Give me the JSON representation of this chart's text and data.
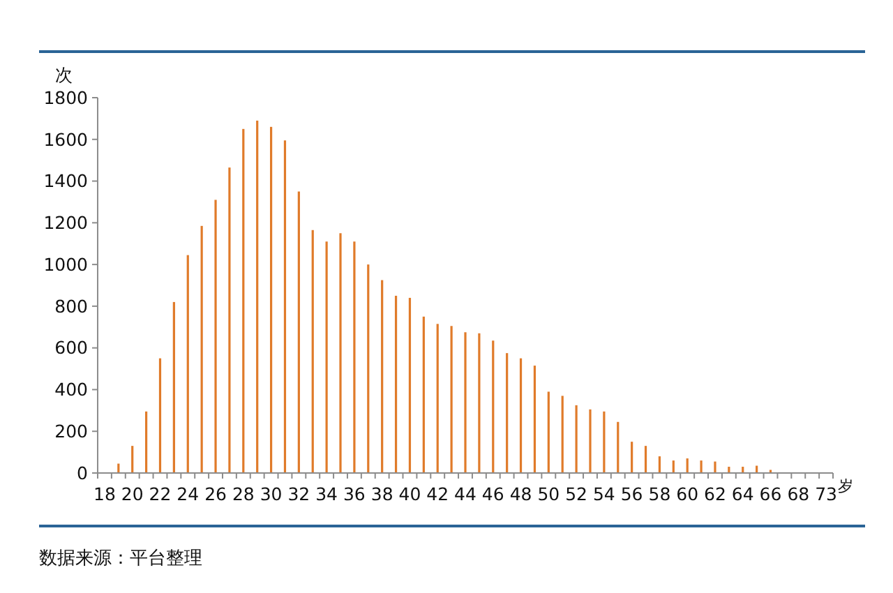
{
  "chart_data": {
    "type": "bar",
    "ylabel": "次",
    "xlabel": "岁",
    "categories": [
      "18",
      null,
      "20",
      null,
      "22",
      null,
      "24",
      null,
      "26",
      null,
      "28",
      null,
      "30",
      null,
      "32",
      null,
      "34",
      null,
      "36",
      null,
      "38",
      null,
      "40",
      null,
      "42",
      null,
      "44",
      null,
      "46",
      null,
      "48",
      null,
      "50",
      null,
      "52",
      null,
      "54",
      null,
      "56",
      null,
      "58",
      null,
      "60",
      null,
      "62",
      null,
      "64",
      null,
      "66",
      null,
      "68",
      null,
      "73"
    ],
    "values": [
      0,
      45,
      130,
      295,
      550,
      820,
      1045,
      1185,
      1310,
      1465,
      1650,
      1690,
      1660,
      1595,
      1350,
      1165,
      1110,
      1150,
      1110,
      1000,
      925,
      850,
      840,
      750,
      715,
      705,
      675,
      670,
      635,
      575,
      550,
      515,
      390,
      370,
      325,
      305,
      295,
      245,
      150,
      130,
      80,
      60,
      70,
      60,
      55,
      30,
      30,
      35,
      15,
      0,
      0,
      0,
      0
    ],
    "color": "#e07b2a",
    "ylim": [
      0,
      1800
    ],
    "yticks": [
      0,
      200,
      400,
      600,
      800,
      1000,
      1200,
      1400,
      1600,
      1800
    ],
    "annotations": [
      "数据来源：平台整理"
    ]
  }
}
